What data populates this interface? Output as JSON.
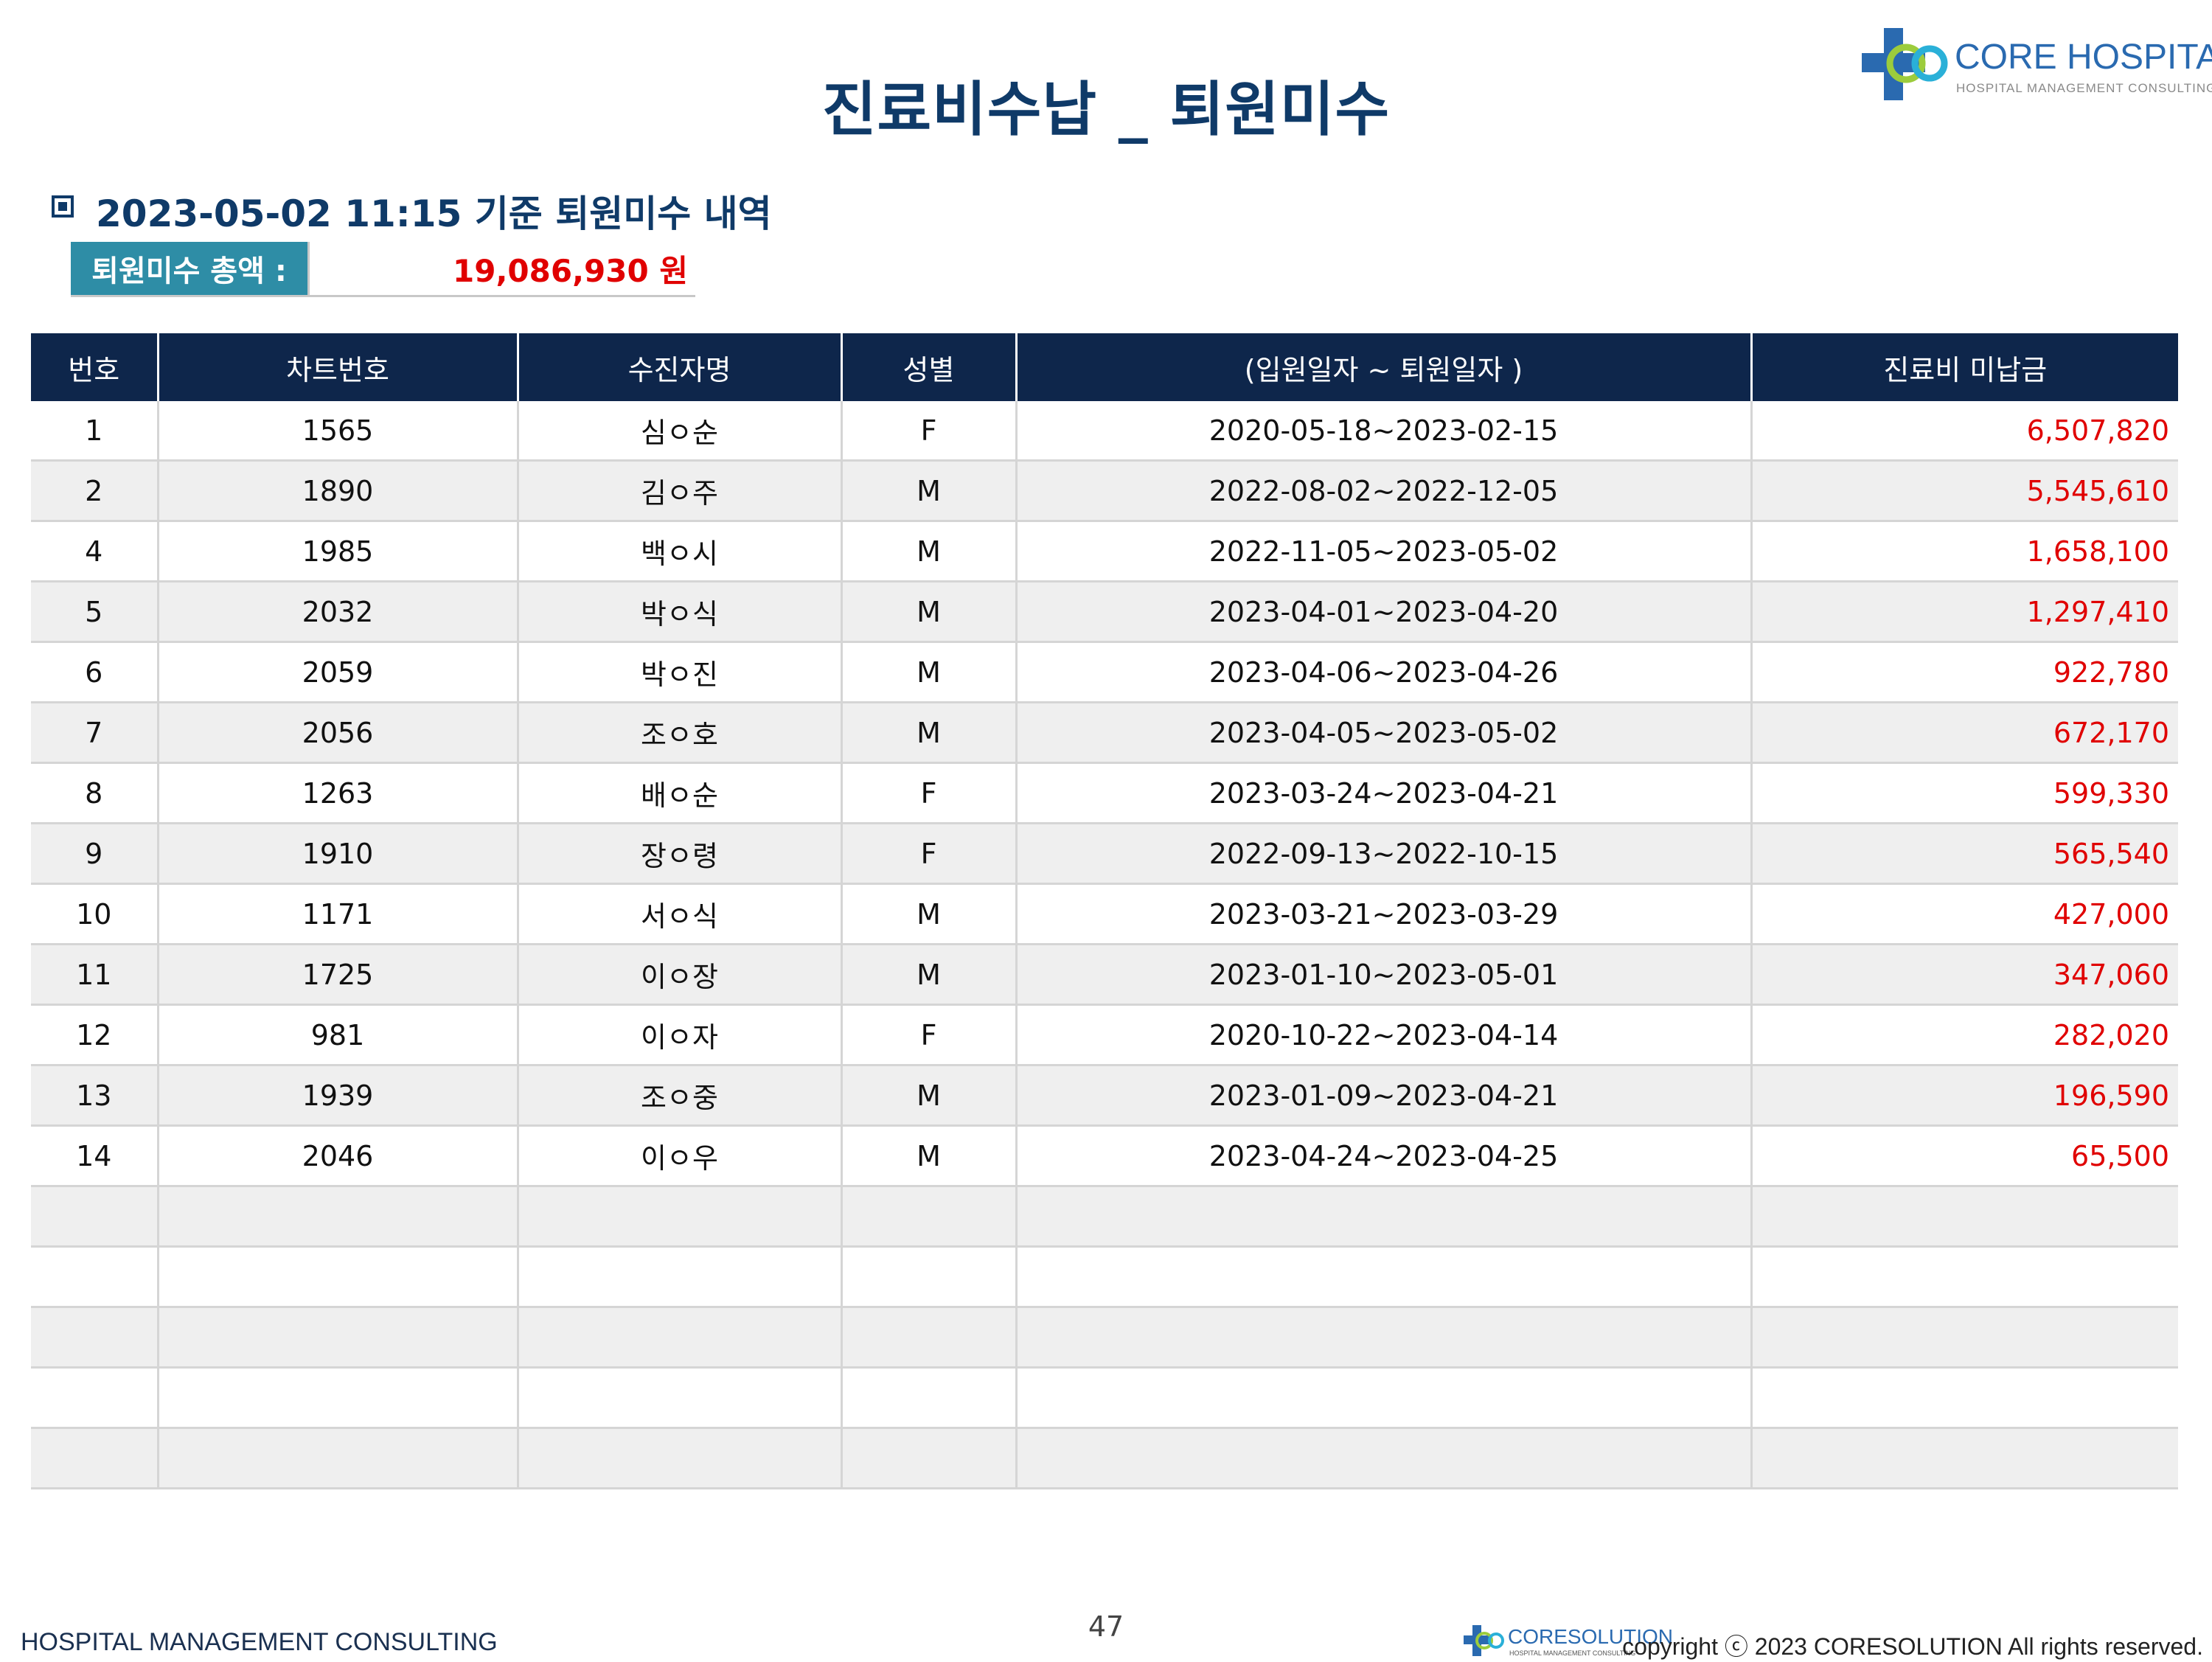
{
  "header": {
    "title": "진료비수납 _ 퇴원미수",
    "logo_name": "CORE HOSPITAL",
    "logo_subtitle": "HOSPITAL MANAGEMENT CONSULTING"
  },
  "section": {
    "heading": "2023-05-02  11:15  기준 퇴원미수 내역",
    "total_label": "퇴원미수 총액 :",
    "total_value": "19,086,930 원"
  },
  "table": {
    "columns": [
      "번호",
      "차트번호",
      "수진자명",
      "성별",
      "(입원일자 ~ 퇴원일자 )",
      "진료비 미납금"
    ],
    "rows": [
      {
        "no": "1",
        "chart": "1565",
        "name": "심ㅇ순",
        "sex": "F",
        "period": "2020-05-18~2023-02-15",
        "amount": "6,507,820"
      },
      {
        "no": "2",
        "chart": "1890",
        "name": "김ㅇ주",
        "sex": "M",
        "period": "2022-08-02~2022-12-05",
        "amount": "5,545,610"
      },
      {
        "no": "4",
        "chart": "1985",
        "name": "백ㅇ시",
        "sex": "M",
        "period": "2022-11-05~2023-05-02",
        "amount": "1,658,100"
      },
      {
        "no": "5",
        "chart": "2032",
        "name": "박ㅇ식",
        "sex": "M",
        "period": "2023-04-01~2023-04-20",
        "amount": "1,297,410"
      },
      {
        "no": "6",
        "chart": "2059",
        "name": "박ㅇ진",
        "sex": "M",
        "period": "2023-04-06~2023-04-26",
        "amount": "922,780"
      },
      {
        "no": "7",
        "chart": "2056",
        "name": "조ㅇ호",
        "sex": "M",
        "period": "2023-04-05~2023-05-02",
        "amount": "672,170"
      },
      {
        "no": "8",
        "chart": "1263",
        "name": "배ㅇ순",
        "sex": "F",
        "period": "2023-03-24~2023-04-21",
        "amount": "599,330"
      },
      {
        "no": "9",
        "chart": "1910",
        "name": "장ㅇ령",
        "sex": "F",
        "period": "2022-09-13~2022-10-15",
        "amount": "565,540"
      },
      {
        "no": "10",
        "chart": "1171",
        "name": "서ㅇ식",
        "sex": "M",
        "period": "2023-03-21~2023-03-29",
        "amount": "427,000"
      },
      {
        "no": "11",
        "chart": "1725",
        "name": "이ㅇ장",
        "sex": "M",
        "period": "2023-01-10~2023-05-01",
        "amount": "347,060"
      },
      {
        "no": "12",
        "chart": "981",
        "name": "이ㅇ자",
        "sex": "F",
        "period": "2020-10-22~2023-04-14",
        "amount": "282,020"
      },
      {
        "no": "13",
        "chart": "1939",
        "name": "조ㅇ중",
        "sex": "M",
        "period": "2023-01-09~2023-04-21",
        "amount": "196,590"
      },
      {
        "no": "14",
        "chart": "2046",
        "name": "이ㅇ우",
        "sex": "M",
        "period": "2023-04-24~2023-04-25",
        "amount": "65,500"
      },
      {
        "no": "",
        "chart": "",
        "name": "",
        "sex": "",
        "period": "",
        "amount": ""
      },
      {
        "no": "",
        "chart": "",
        "name": "",
        "sex": "",
        "period": "",
        "amount": ""
      },
      {
        "no": "",
        "chart": "",
        "name": "",
        "sex": "",
        "period": "",
        "amount": ""
      },
      {
        "no": "",
        "chart": "",
        "name": "",
        "sex": "",
        "period": "",
        "amount": ""
      },
      {
        "no": "",
        "chart": "",
        "name": "",
        "sex": "",
        "period": "",
        "amount": ""
      }
    ]
  },
  "footer": {
    "left_text": "HOSPITAL MANAGEMENT CONSULTING",
    "page_number": "47",
    "logo_name": "CORESOLUTION",
    "logo_subtitle": "HOSPITAL MANAGEMENT CONSULTING",
    "copyright": "copyright ⓒ 2023 CORESOLUTION All rights reserved."
  },
  "colors": {
    "title": "#0f3a68",
    "header_bg": "#0e264b",
    "label_bg": "#2e8da6",
    "amount": "#e00000",
    "alt_row": "#efefef"
  },
  "icons": [
    "core-hospital-logo-icon",
    "square-bullet-icon",
    "coresolution-logo-icon"
  ]
}
